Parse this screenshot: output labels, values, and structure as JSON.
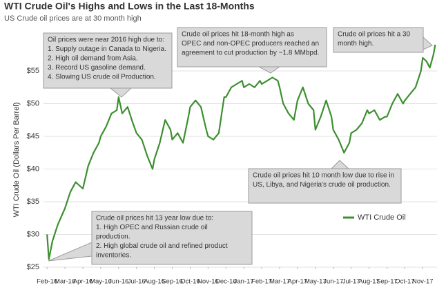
{
  "chart_data": {
    "type": "line",
    "title": "WTI Crude Oil's Highs and Lows in the Last 18-Months",
    "subtitle": "US Crude oil prices are at 30 month high",
    "y_label": "WTI Crude Oil (Dollars Per Barrel)",
    "x": [
      0,
      0.1,
      0.3,
      0.6,
      1.0,
      1.3,
      1.6,
      2.0,
      2.3,
      2.6,
      2.9,
      3.0,
      3.3,
      3.6,
      3.9,
      4.0,
      4.2,
      4.5,
      4.8,
      5.0,
      5.3,
      5.6,
      5.9,
      6.0,
      6.3,
      6.6,
      6.9,
      7.0,
      7.3,
      7.6,
      7.9,
      8.0,
      8.3,
      8.6,
      8.9,
      9.0,
      9.3,
      9.6,
      9.9,
      10.0,
      10.3,
      10.6,
      10.9,
      11.0,
      11.3,
      11.6,
      11.9,
      12.0,
      12.3,
      12.6,
      12.9,
      13.0,
      13.2,
      13.5,
      13.8,
      14.0,
      14.3,
      14.6,
      14.9,
      15.0,
      15.3,
      15.6,
      15.9,
      16.0,
      16.3,
      16.6,
      16.9,
      17.0,
      17.3,
      17.6,
      17.9,
      18.0,
      18.3,
      18.6,
      18.9,
      19.0,
      19.3,
      19.6,
      19.9,
      20.0,
      20.3,
      20.6,
      20.9,
      21.0,
      21.2,
      21.4,
      21.6,
      21.7
    ],
    "series": [
      {
        "name": "WTI Crude Oil",
        "color": "#3c8f2f",
        "values": [
          30,
          26.2,
          29,
          31.5,
          34,
          36.5,
          38,
          37,
          40.5,
          42.5,
          44,
          45,
          46.5,
          48.5,
          49,
          51,
          48.5,
          49.5,
          47,
          45.5,
          44.5,
          42,
          40,
          41.5,
          44,
          47.5,
          46,
          44.5,
          45.5,
          44,
          48,
          49.5,
          50.5,
          49.5,
          46,
          45,
          44.5,
          45.5,
          51,
          51,
          52.5,
          53,
          53.5,
          52.5,
          53,
          52.5,
          53.5,
          53,
          53.5,
          54,
          53.5,
          52.5,
          50,
          48.5,
          47.5,
          50.5,
          52.5,
          50,
          49,
          46,
          48,
          50.5,
          48,
          46,
          44.5,
          42.5,
          44,
          45.5,
          46,
          47,
          49,
          48.5,
          49,
          47.5,
          48,
          48,
          50,
          51.5,
          50,
          50.5,
          51.5,
          52.5,
          55,
          57,
          56.5,
          55.5,
          57.5,
          59
        ]
      }
    ],
    "xlim": [
      -0.2,
      21.8
    ],
    "xticks": [
      {
        "value": 0,
        "label": "Feb-16"
      },
      {
        "value": 1,
        "label": "Mar-16"
      },
      {
        "value": 2,
        "label": "Apr-16"
      },
      {
        "value": 3,
        "label": "May-16"
      },
      {
        "value": 4,
        "label": "Jun-16"
      },
      {
        "value": 5,
        "label": "Jul-16"
      },
      {
        "value": 6,
        "label": "Aug-16"
      },
      {
        "value": 7,
        "label": "Sep-16"
      },
      {
        "value": 8,
        "label": "Oct-16"
      },
      {
        "value": 9,
        "label": "Nov-16"
      },
      {
        "value": 10,
        "label": "Dec-16"
      },
      {
        "value": 11,
        "label": "Jan-17"
      },
      {
        "value": 12,
        "label": "Feb-17"
      },
      {
        "value": 13,
        "label": "Mar-17"
      },
      {
        "value": 14,
        "label": "Apr-17"
      },
      {
        "value": 15,
        "label": "May-17"
      },
      {
        "value": 16,
        "label": "Jun-17"
      },
      {
        "value": 17,
        "label": "Jul-17"
      },
      {
        "value": 18,
        "label": "Aug-17"
      },
      {
        "value": 19,
        "label": "Sep-17"
      },
      {
        "value": 20,
        "label": "Oct-17"
      },
      {
        "value": 21,
        "label": "Nov-17"
      }
    ],
    "ylim": [
      25,
      60
    ],
    "yticks": [
      {
        "value": 25,
        "label": "$25"
      },
      {
        "value": 30,
        "label": "$30"
      },
      {
        "value": 35,
        "label": "$35"
      },
      {
        "value": 40,
        "label": "$40"
      },
      {
        "value": 45,
        "label": "$45"
      },
      {
        "value": 50,
        "label": "$50"
      },
      {
        "value": 55,
        "label": "$55"
      }
    ],
    "grid": true,
    "legend": "lower right",
    "annotations": [
      {
        "lines": [
          "Oil prices were near 2016 high due to:",
          "1. Supply outage in Canada to Nigeria.",
          "2. High oil demand from Asia.",
          "3. Record US gasoline demand.",
          "4. Slowing US crude oil Production."
        ]
      },
      {
        "lines": [
          "Crude oil prices hit 18-month high as",
          "OPEC and non-OPEC producers reached an",
          "agreement to cut production by ~1.8 MMbpd."
        ]
      },
      {
        "lines": [
          "Crude oil prices hit a 30",
          "month high."
        ]
      },
      {
        "lines": [
          "Crude oil prices hit 10 month low due to rise in",
          "US, Libya, and Nigeria's crude oil production."
        ]
      },
      {
        "lines": [
          "Crude oil prices hit 13 year low due to:",
          "1. High OPEC and Russian crude oil",
          "production.",
          "2. High global crude oil and refined product",
          "inventories."
        ]
      }
    ]
  }
}
